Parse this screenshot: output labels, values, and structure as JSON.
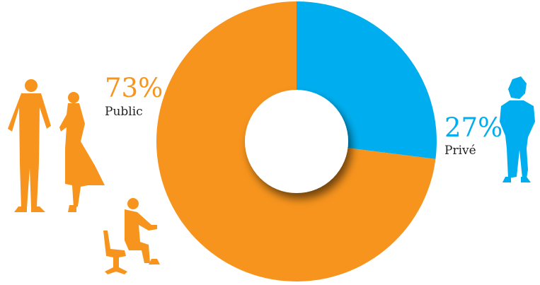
{
  "chart_data": {
    "type": "pie",
    "donut": true,
    "categories": [
      "Public",
      "Privé"
    ],
    "values": [
      73,
      27
    ],
    "value_labels": [
      "73%",
      "27%"
    ],
    "colors": [
      "#F7941D",
      "#00AEEF"
    ],
    "title": "",
    "legend": "none"
  },
  "icons": [
    "people-standing-silhouette-icon",
    "person-seated-silhouette-icon",
    "person-hands-on-hips-silhouette-icon"
  ]
}
